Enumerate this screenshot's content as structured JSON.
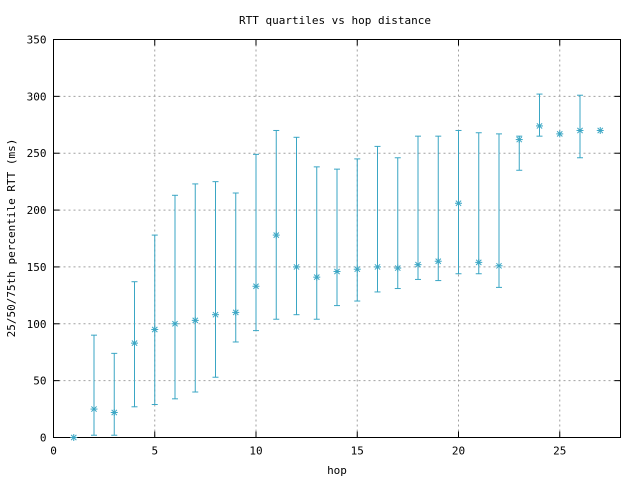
{
  "chart_data": {
    "type": "scatter",
    "title": "RTT quartiles vs hop distance",
    "xlabel": "hop",
    "ylabel": "25/50/75th percentile RTT (ms)",
    "xlim": [
      0,
      28
    ],
    "ylim": [
      0,
      350
    ],
    "xticks": [
      0,
      5,
      10,
      15,
      20,
      25
    ],
    "yticks": [
      0,
      50,
      100,
      150,
      200,
      250,
      300,
      350
    ],
    "grid": true,
    "color": "#3aa6c4",
    "points": [
      {
        "x": 1,
        "low": 0,
        "median": 0,
        "high": 0
      },
      {
        "x": 2,
        "low": 2,
        "median": 25,
        "high": 90
      },
      {
        "x": 3,
        "low": 2,
        "median": 22,
        "high": 74
      },
      {
        "x": 4,
        "low": 27,
        "median": 83,
        "high": 137
      },
      {
        "x": 5,
        "low": 29,
        "median": 95,
        "high": 178
      },
      {
        "x": 6,
        "low": 34,
        "median": 100,
        "high": 213
      },
      {
        "x": 7,
        "low": 40,
        "median": 103,
        "high": 223
      },
      {
        "x": 8,
        "low": 53,
        "median": 108,
        "high": 225
      },
      {
        "x": 9,
        "low": 84,
        "median": 110,
        "high": 215
      },
      {
        "x": 10,
        "low": 94,
        "median": 133,
        "high": 249
      },
      {
        "x": 11,
        "low": 104,
        "median": 178,
        "high": 270
      },
      {
        "x": 12,
        "low": 108,
        "median": 150,
        "high": 264
      },
      {
        "x": 13,
        "low": 104,
        "median": 141,
        "high": 238
      },
      {
        "x": 14,
        "low": 116,
        "median": 146,
        "high": 236
      },
      {
        "x": 15,
        "low": 120,
        "median": 148,
        "high": 245
      },
      {
        "x": 16,
        "low": 128,
        "median": 150,
        "high": 256
      },
      {
        "x": 17,
        "low": 131,
        "median": 149,
        "high": 246
      },
      {
        "x": 18,
        "low": 139,
        "median": 152,
        "high": 265
      },
      {
        "x": 19,
        "low": 138,
        "median": 155,
        "high": 265
      },
      {
        "x": 20,
        "low": 144,
        "median": 206,
        "high": 270
      },
      {
        "x": 21,
        "low": 144,
        "median": 154,
        "high": 268
      },
      {
        "x": 22,
        "low": 132,
        "median": 151,
        "high": 267
      },
      {
        "x": 23,
        "low": 235,
        "median": 262,
        "high": 265
      },
      {
        "x": 24,
        "low": 265,
        "median": 274,
        "high": 302
      },
      {
        "x": 25,
        "low": 267,
        "median": 267,
        "high": 267
      },
      {
        "x": 26,
        "low": 246,
        "median": 270,
        "high": 301
      },
      {
        "x": 27,
        "low": 270,
        "median": 270,
        "high": 270
      }
    ]
  }
}
